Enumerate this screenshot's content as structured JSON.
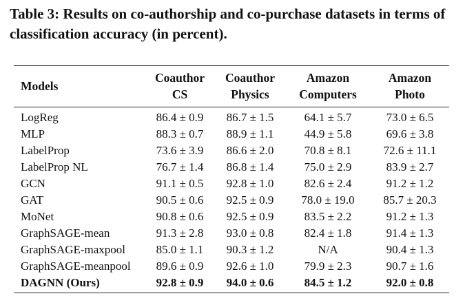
{
  "caption": {
    "label": "Table 3:",
    "text": "Results on co-authorship and co-purchase datasets in terms of classification accuracy (in percent)."
  },
  "table": {
    "header": [
      [
        "Models"
      ],
      [
        "Coauthor",
        "CS"
      ],
      [
        "Coauthor",
        "Physics"
      ],
      [
        "Amazon",
        "Computers"
      ],
      [
        "Amazon",
        "Photo"
      ]
    ],
    "rows": [
      [
        "LogReg",
        "86.4 ± 0.9",
        "86.7 ± 1.5",
        "64.1 ± 5.7",
        "73.0 ± 6.5"
      ],
      [
        "MLP",
        "88.3 ± 0.7",
        "88.9 ± 1.1",
        "44.9 ± 5.8",
        "69.6 ± 3.8"
      ],
      [
        "LabelProp",
        "73.6 ± 3.9",
        "86.6 ± 2.0",
        "70.8 ± 8.1",
        "72.6 ± 11.1"
      ],
      [
        "LabelProp NL",
        "76.7 ± 1.4",
        "86.8 ± 1.4",
        "75.0 ± 2.9",
        "83.9 ± 2.7"
      ],
      [
        "GCN",
        "91.1 ± 0.5",
        "92.8 ± 1.0",
        "82.6 ± 2.4",
        "91.2 ± 1.2"
      ],
      [
        "GAT",
        "90.5 ± 0.6",
        "92.5 ± 0.9",
        "78.0 ± 19.0",
        "85.7 ± 20.3"
      ],
      [
        "MoNet",
        "90.8 ± 0.6",
        "92.5 ± 0.9",
        "83.5 ± 2.2",
        "91.2 ± 1.3"
      ],
      [
        "GraphSAGE-mean",
        "91.3 ± 2.8",
        "93.0 ± 0.8",
        "82.4 ± 1.8",
        "91.4 ± 1.3"
      ],
      [
        "GraphSAGE-maxpool",
        "85.0 ± 1.1",
        "90.3 ± 1.2",
        "N/A",
        "90.4 ± 1.3"
      ],
      [
        "GraphSAGE-meanpool",
        "89.6 ± 0.9",
        "92.6 ± 1.0",
        "79.9 ± 2.3",
        "90.7 ± 1.6"
      ],
      [
        "DAGNN (Ours)",
        "92.8 ± 0.9",
        "94.0 ± 0.6",
        "84.5 ± 1.2",
        "92.0 ± 0.8"
      ]
    ]
  }
}
